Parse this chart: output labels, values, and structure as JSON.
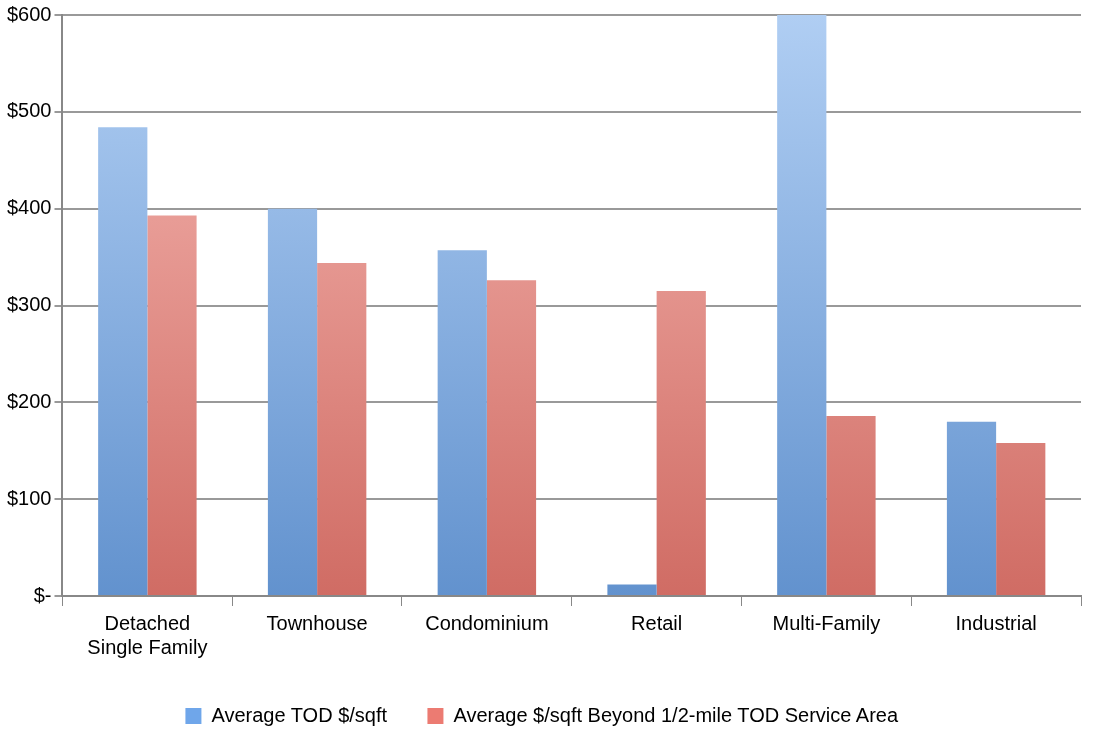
{
  "chart_data": {
    "type": "bar",
    "categories": [
      "Detached Single Family",
      "Townhouse",
      "Condominium",
      "Retail",
      "Multi-Family",
      "Industrial"
    ],
    "series": [
      {
        "name": "Average TOD $/sqft",
        "color": "#6fa6ea",
        "values": [
          484,
          400,
          357,
          12,
          600,
          180
        ]
      },
      {
        "name": "Average $/sqft Beyond 1/2-mile TOD Service Area",
        "color": "#ec7b72",
        "values": [
          393,
          344,
          326,
          315,
          186,
          158
        ]
      }
    ],
    "ylim": [
      0,
      600
    ],
    "yticks": [
      {
        "value": 0,
        "label": "$-"
      },
      {
        "value": 100,
        "label": "$100"
      },
      {
        "value": 200,
        "label": "$200"
      },
      {
        "value": 300,
        "label": "$300"
      },
      {
        "value": 400,
        "label": "$400"
      },
      {
        "value": 500,
        "label": "$500"
      },
      {
        "value": 600,
        "label": "$600"
      }
    ],
    "grid": "y",
    "legend": "bottom"
  }
}
